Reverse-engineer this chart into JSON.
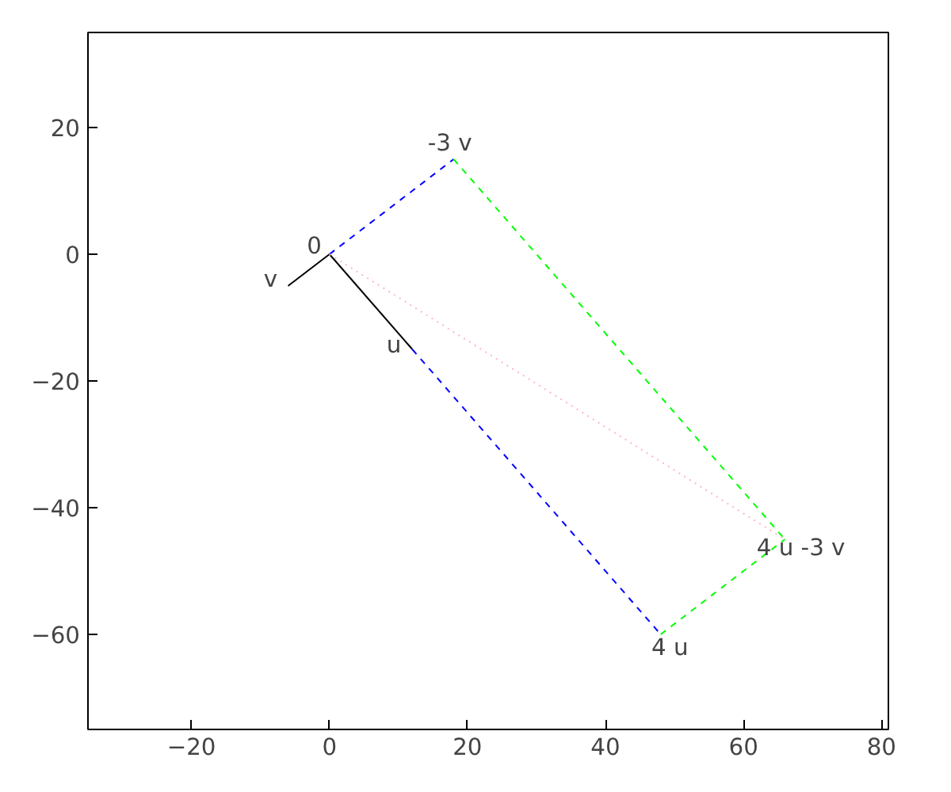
{
  "chart_data": {
    "type": "line",
    "series": [
      {
        "color": "#000000",
        "x": [
          0,
          12
        ],
        "values": [
          0,
          -15
        ],
        "line_style": "solid"
      },
      {
        "color": "#000000",
        "x": [
          0,
          -6
        ],
        "values": [
          0,
          -5
        ],
        "line_style": "solid"
      },
      {
        "color": "#0000ff",
        "x": [
          0,
          18
        ],
        "values": [
          0,
          15
        ],
        "line_style": "dashed"
      },
      {
        "color": "#0000ff",
        "x": [
          12,
          48
        ],
        "values": [
          -15,
          -60
        ],
        "line_style": "dashed"
      },
      {
        "color": "#00ff00",
        "x": [
          18,
          66
        ],
        "values": [
          15,
          -45
        ],
        "line_style": "dashed"
      },
      {
        "color": "#00ff00",
        "x": [
          48,
          66
        ],
        "values": [
          -60,
          -45
        ],
        "line_style": "dashed"
      },
      {
        "color": "#ffb6c1",
        "x": [
          0,
          66
        ],
        "values": [
          0,
          -45
        ],
        "line_style": "dotted"
      }
    ],
    "annotations": [
      {
        "text": "0",
        "x": 0,
        "y": 0
      },
      {
        "text": "v",
        "x": -6,
        "y": -5
      },
      {
        "text": "u",
        "x": 12,
        "y": -15
      },
      {
        "text": "-3 v",
        "x": 18,
        "y": 15
      },
      {
        "text": "4 u",
        "x": 48,
        "y": -60
      },
      {
        "text": "4 u -3 v",
        "x": 66,
        "y": -45
      }
    ],
    "xlim": [
      -35,
      81
    ],
    "ylim": [
      -75,
      35
    ],
    "xticks": [
      -20,
      0,
      20,
      40,
      60,
      80
    ],
    "yticks": [
      -60,
      -40,
      -20,
      0,
      20
    ],
    "grid": false
  }
}
